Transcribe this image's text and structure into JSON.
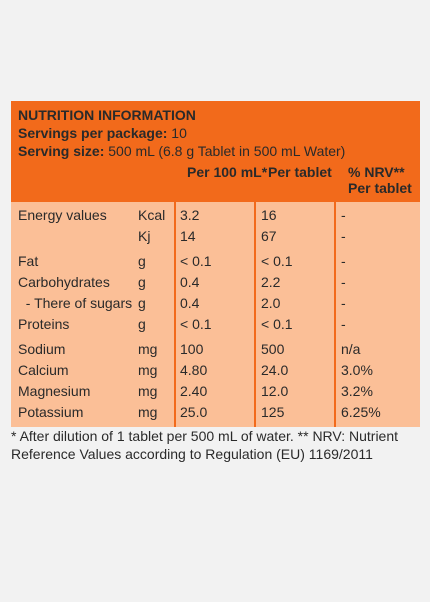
{
  "header": {
    "title": "NUTRITION INFORMATION",
    "servings_label": "Servings per package:",
    "servings_value": " 10",
    "size_label": "Serving size:",
    "size_value": " 500 mL (6.8 g Tablet in 500 mL Water)",
    "col_per100": "Per 100 mL*",
    "col_pertablet": "Per tablet",
    "col_nrv": "% NRV**\nPer tablet"
  },
  "rows": [
    {
      "name": "Energy values",
      "unit": "Kcal",
      "per100": "3.2",
      "pertab": "16",
      "nrv": "-"
    },
    {
      "name": "",
      "unit": "Kj",
      "per100": "14",
      "pertab": "67",
      "nrv": "-"
    },
    {
      "name": "Fat",
      "unit": "g",
      "per100": "< 0.1",
      "pertab": "< 0.1",
      "nrv": "-"
    },
    {
      "name": "Carbohydrates",
      "unit": "g",
      "per100": "0.4",
      "pertab": "2.2",
      "nrv": "-"
    },
    {
      "name": "  - There of sugars",
      "unit": "g",
      "per100": "0.4",
      "pertab": "2.0",
      "nrv": "-"
    },
    {
      "name": "Proteins",
      "unit": "g",
      "per100": "< 0.1",
      "pertab": "< 0.1",
      "nrv": "-"
    },
    {
      "name": "Sodium",
      "unit": "mg",
      "per100": "100",
      "pertab": "500",
      "nrv": "n/a"
    },
    {
      "name": "Calcium",
      "unit": "mg",
      "per100": "4.80",
      "pertab": "24.0",
      "nrv": "3.0%"
    },
    {
      "name": "Magnesium",
      "unit": "mg",
      "per100": "2.40",
      "pertab": "12.0",
      "nrv": "3.2%"
    },
    {
      "name": "Potassium",
      "unit": "mg",
      "per100": "25.0",
      "pertab": "125",
      "nrv": "6.25%"
    }
  ],
  "footnote": "* After dilution of 1 tablet per 500 mL of water. ** NRV: Nutrient Reference Values according to Regulation (EU) 1169/2011",
  "colors": {
    "header_bg": "#f26a1b",
    "body_bg": "#fbbf97",
    "page_bg": "#f2f2f2"
  }
}
